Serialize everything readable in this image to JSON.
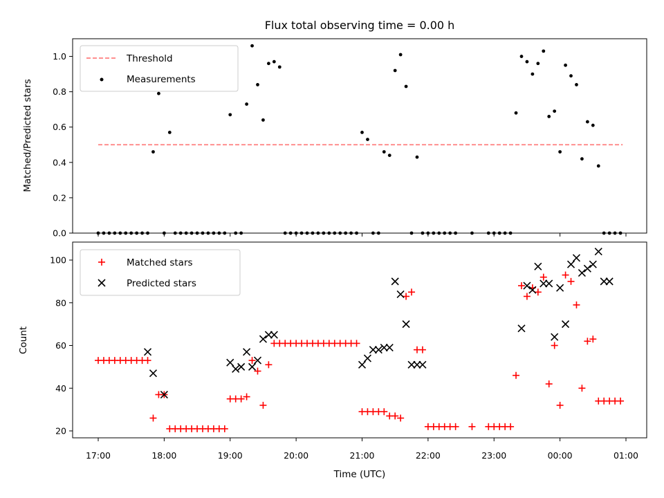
{
  "title": "Flux total observing time = 0.00 h",
  "colors": {
    "threshold": "#ff7f7f",
    "measurements": "#000000",
    "matched": "#ff0000",
    "predicted": "#000000"
  },
  "chart_data": [
    {
      "type": "scatter",
      "ylabel": "Matched/Predicted stars",
      "xlabel": "",
      "ylim": [
        0,
        1.1
      ],
      "legend_position": "top-left",
      "yticks": [
        "0.0",
        "0.2",
        "0.4",
        "0.6",
        "0.8",
        "1.0"
      ],
      "series": [
        {
          "name": "Threshold",
          "kind": "dashed-line",
          "x": [
            "17:00",
            "00:57"
          ],
          "y": [
            0.5,
            0.5
          ]
        },
        {
          "name": "Measurements",
          "kind": "dot",
          "x": [
            "17:00",
            "17:05",
            "17:10",
            "17:15",
            "17:20",
            "17:25",
            "17:30",
            "17:35",
            "17:40",
            "17:45",
            "17:50",
            "17:55",
            "18:00",
            "18:05",
            "18:10",
            "18:15",
            "18:20",
            "18:25",
            "18:30",
            "18:35",
            "18:40",
            "18:45",
            "18:50",
            "18:55",
            "19:00",
            "19:05",
            "19:10",
            "19:15",
            "19:20",
            "19:25",
            "19:30",
            "19:35",
            "19:40",
            "19:45",
            "19:50",
            "19:55",
            "20:00",
            "20:05",
            "20:10",
            "20:15",
            "20:20",
            "20:25",
            "20:30",
            "20:35",
            "20:40",
            "20:45",
            "20:50",
            "20:55",
            "21:00",
            "21:05",
            "21:10",
            "21:15",
            "21:20",
            "21:25",
            "21:30",
            "21:35",
            "21:40",
            "21:45",
            "21:50",
            "21:55",
            "22:00",
            "22:05",
            "22:10",
            "22:15",
            "22:20",
            "22:25",
            "22:40",
            "22:55",
            "23:00",
            "23:05",
            "23:10",
            "23:15",
            "23:20",
            "23:25",
            "23:30",
            "23:35",
            "23:40",
            "23:45",
            "23:50",
            "23:55",
            "00:00",
            "00:05",
            "00:10",
            "00:15",
            "00:20",
            "00:25",
            "00:30",
            "00:35",
            "00:40",
            "00:45",
            "00:50",
            "00:55"
          ],
          "y": [
            0,
            0,
            0,
            0,
            0,
            0,
            0,
            0,
            0,
            0,
            0.46,
            0.79,
            0,
            0.57,
            0,
            0,
            0,
            0,
            0,
            0,
            0,
            0,
            0,
            0,
            0.67,
            0,
            0,
            0.73,
            1.06,
            0.84,
            0.64,
            0.96,
            0.97,
            0.94,
            0,
            0,
            0,
            0,
            0,
            0,
            0,
            0,
            0,
            0,
            0,
            0,
            0,
            0,
            0.57,
            0.53,
            0,
            0,
            0.46,
            0.44,
            0.92,
            1.01,
            0.83,
            0,
            0.43,
            0,
            0,
            0,
            0,
            0,
            0,
            0,
            0,
            0,
            0,
            0,
            0,
            0,
            0.68,
            1.0,
            0.97,
            0.9,
            0.96,
            1.03,
            0.66,
            0.69,
            0.46,
            0.95,
            0.89,
            0.84,
            0.42,
            0.63,
            0.61,
            0.38,
            0,
            0,
            0,
            0
          ]
        }
      ]
    },
    {
      "type": "scatter",
      "ylabel": "Count",
      "xlabel": "Time (UTC)",
      "ylim": [
        17,
        108
      ],
      "legend_position": "top-left",
      "yticks": [
        "20",
        "40",
        "60",
        "80",
        "100"
      ],
      "xticks": [
        "17:00",
        "18:00",
        "19:00",
        "20:00",
        "21:00",
        "22:00",
        "23:00",
        "00:00",
        "01:00"
      ],
      "series": [
        {
          "name": "Matched stars",
          "kind": "plus",
          "x": [
            "17:00",
            "17:05",
            "17:10",
            "17:15",
            "17:20",
            "17:25",
            "17:30",
            "17:35",
            "17:40",
            "17:45",
            "17:50",
            "17:55",
            "18:00",
            "18:05",
            "18:10",
            "18:15",
            "18:20",
            "18:25",
            "18:30",
            "18:35",
            "18:40",
            "18:45",
            "18:50",
            "18:55",
            "19:00",
            "19:05",
            "19:10",
            "19:15",
            "19:20",
            "19:25",
            "19:30",
            "19:35",
            "19:40",
            "19:45",
            "19:50",
            "19:55",
            "20:00",
            "20:05",
            "20:10",
            "20:15",
            "20:20",
            "20:25",
            "20:30",
            "20:35",
            "20:40",
            "20:45",
            "20:50",
            "20:55",
            "21:00",
            "21:05",
            "21:10",
            "21:15",
            "21:20",
            "21:25",
            "21:30",
            "21:35",
            "21:40",
            "21:45",
            "21:50",
            "21:55",
            "22:00",
            "22:05",
            "22:10",
            "22:15",
            "22:20",
            "22:25",
            "22:40",
            "22:55",
            "23:00",
            "23:05",
            "23:10",
            "23:15",
            "23:20",
            "23:25",
            "23:30",
            "23:35",
            "23:40",
            "23:45",
            "23:50",
            "23:55",
            "00:00",
            "00:05",
            "00:10",
            "00:15",
            "00:20",
            "00:25",
            "00:30",
            "00:35",
            "00:40",
            "00:45",
            "00:50",
            "00:55"
          ],
          "y": [
            53,
            53,
            53,
            53,
            53,
            53,
            53,
            53,
            53,
            53,
            26,
            37,
            37,
            21,
            21,
            21,
            21,
            21,
            21,
            21,
            21,
            21,
            21,
            21,
            35,
            35,
            35,
            36,
            53,
            48,
            32,
            51,
            61,
            61,
            61,
            61,
            61,
            61,
            61,
            61,
            61,
            61,
            61,
            61,
            61,
            61,
            61,
            61,
            29,
            29,
            29,
            29,
            29,
            27,
            27,
            26,
            83,
            85,
            58,
            58,
            22,
            22,
            22,
            22,
            22,
            22,
            22,
            22,
            22,
            22,
            22,
            22,
            46,
            88,
            83,
            87,
            85,
            92,
            42,
            60,
            32,
            93,
            90,
            79,
            40,
            62,
            63,
            34,
            34,
            34,
            34,
            34
          ]
        },
        {
          "name": "Predicted stars",
          "kind": "x",
          "x": [
            "17:45",
            "17:50",
            "18:00",
            "19:00",
            "19:05",
            "19:10",
            "19:15",
            "19:20",
            "19:25",
            "19:30",
            "19:35",
            "19:40",
            "21:00",
            "21:05",
            "21:10",
            "21:15",
            "21:20",
            "21:25",
            "21:30",
            "21:35",
            "21:40",
            "21:45",
            "21:50",
            "21:55",
            "23:25",
            "23:30",
            "23:35",
            "23:40",
            "23:45",
            "23:50",
            "23:55",
            "00:00",
            "00:05",
            "00:10",
            "00:15",
            "00:20",
            "00:25",
            "00:30",
            "00:35",
            "00:40",
            "00:45"
          ],
          "y": [
            57,
            47,
            37,
            52,
            49,
            50,
            57,
            50,
            53,
            63,
            65,
            65,
            51,
            54,
            58,
            58,
            59,
            59,
            90,
            84,
            70,
            51,
            51,
            51,
            68,
            88,
            86,
            97,
            89,
            89,
            64,
            87,
            70,
            98,
            101,
            94,
            96,
            98,
            104,
            90,
            90
          ]
        }
      ]
    }
  ]
}
